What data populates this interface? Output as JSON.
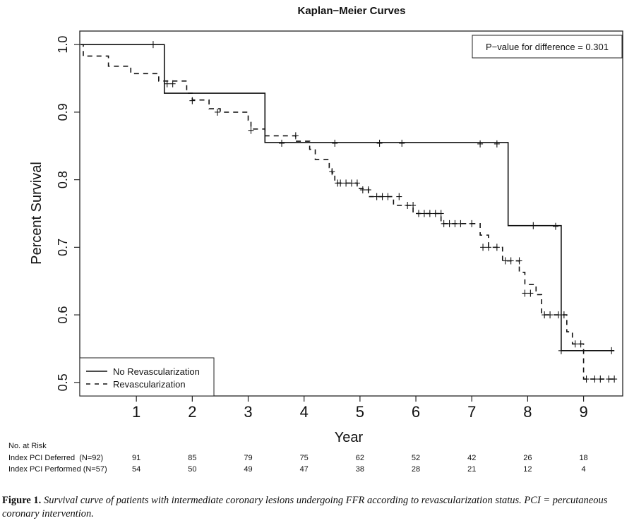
{
  "chart_data": {
    "type": "line",
    "title": "Kaplan−Meier Curves",
    "xlabel": "Year",
    "ylabel": "Percent Survival",
    "xlim": [
      0,
      9.7
    ],
    "ylim": [
      0.48,
      1.02
    ],
    "x_ticks": [
      "1",
      "2",
      "3",
      "4",
      "5",
      "6",
      "7",
      "8",
      "9"
    ],
    "y_ticks": [
      "0.5",
      "0.6",
      "0.7",
      "0.8",
      "0.9",
      "1.0"
    ],
    "annotation": "P−value for difference = 0.301",
    "legend_position": "bottom-left",
    "series": [
      {
        "name": "No Revascularization",
        "style": "solid",
        "color": "#111111",
        "steps": [
          [
            0,
            1.0
          ],
          [
            1.5,
            0.928
          ],
          [
            3.3,
            0.855
          ],
          [
            7.65,
            0.732
          ],
          [
            8.6,
            0.547
          ],
          [
            9.55,
            0.547
          ]
        ],
        "censored": [
          [
            1.3,
            1.0
          ],
          [
            3.6,
            0.854
          ],
          [
            4.55,
            0.854
          ],
          [
            5.35,
            0.854
          ],
          [
            5.75,
            0.854
          ],
          [
            7.15,
            0.853
          ],
          [
            7.45,
            0.853
          ],
          [
            8.1,
            0.732
          ],
          [
            8.5,
            0.731
          ],
          [
            9.5,
            0.547
          ],
          [
            8.6,
            0.547
          ]
        ]
      },
      {
        "name": "Revascularization",
        "style": "dashed",
        "color": "#111111",
        "steps": [
          [
            0,
            1.0
          ],
          [
            0.05,
            0.983
          ],
          [
            0.5,
            0.968
          ],
          [
            0.9,
            0.957
          ],
          [
            1.4,
            0.946
          ],
          [
            1.9,
            0.928
          ],
          [
            2.0,
            0.918
          ],
          [
            2.3,
            0.905
          ],
          [
            2.5,
            0.9
          ],
          [
            3.0,
            0.888
          ],
          [
            3.05,
            0.875
          ],
          [
            3.3,
            0.865
          ],
          [
            3.85,
            0.857
          ],
          [
            4.1,
            0.845
          ],
          [
            4.2,
            0.83
          ],
          [
            4.45,
            0.818
          ],
          [
            4.5,
            0.81
          ],
          [
            4.55,
            0.795
          ],
          [
            4.95,
            0.787
          ],
          [
            5.15,
            0.775
          ],
          [
            5.6,
            0.762
          ],
          [
            5.95,
            0.75
          ],
          [
            6.45,
            0.735
          ],
          [
            7.15,
            0.718
          ],
          [
            7.3,
            0.7
          ],
          [
            7.55,
            0.68
          ],
          [
            7.85,
            0.663
          ],
          [
            7.95,
            0.645
          ],
          [
            8.15,
            0.63
          ],
          [
            8.25,
            0.6
          ],
          [
            8.7,
            0.575
          ],
          [
            8.8,
            0.557
          ],
          [
            9.0,
            0.54
          ],
          [
            9.0,
            0.505
          ],
          [
            9.6,
            0.505
          ]
        ],
        "censored": [
          [
            1.55,
            0.942
          ],
          [
            1.65,
            0.942
          ],
          [
            2.0,
            0.917
          ],
          [
            2.45,
            0.9
          ],
          [
            3.05,
            0.873
          ],
          [
            3.85,
            0.865
          ],
          [
            4.5,
            0.812
          ],
          [
            4.6,
            0.795
          ],
          [
            4.65,
            0.795
          ],
          [
            4.75,
            0.795
          ],
          [
            4.85,
            0.795
          ],
          [
            4.95,
            0.795
          ],
          [
            5.05,
            0.785
          ],
          [
            5.15,
            0.785
          ],
          [
            5.3,
            0.775
          ],
          [
            5.4,
            0.775
          ],
          [
            5.5,
            0.775
          ],
          [
            5.7,
            0.775
          ],
          [
            5.85,
            0.762
          ],
          [
            5.95,
            0.762
          ],
          [
            6.05,
            0.75
          ],
          [
            6.15,
            0.75
          ],
          [
            6.25,
            0.75
          ],
          [
            6.35,
            0.75
          ],
          [
            6.45,
            0.75
          ],
          [
            6.5,
            0.735
          ],
          [
            6.6,
            0.735
          ],
          [
            6.7,
            0.735
          ],
          [
            6.8,
            0.735
          ],
          [
            7.0,
            0.735
          ],
          [
            7.2,
            0.7
          ],
          [
            7.3,
            0.7
          ],
          [
            7.45,
            0.7
          ],
          [
            7.6,
            0.68
          ],
          [
            7.7,
            0.68
          ],
          [
            7.85,
            0.68
          ],
          [
            7.95,
            0.632
          ],
          [
            8.05,
            0.632
          ],
          [
            8.3,
            0.6
          ],
          [
            8.4,
            0.6
          ],
          [
            8.55,
            0.6
          ],
          [
            8.65,
            0.6
          ],
          [
            8.85,
            0.557
          ],
          [
            8.95,
            0.557
          ],
          [
            9.05,
            0.505
          ],
          [
            9.2,
            0.505
          ],
          [
            9.3,
            0.505
          ],
          [
            9.45,
            0.505
          ],
          [
            9.55,
            0.505
          ]
        ]
      }
    ]
  },
  "risk_table": {
    "title": "No. at Risk",
    "rows": [
      {
        "label": "Index PCI Deferred  (N=92)",
        "values": [
          "91",
          "85",
          "79",
          "75",
          "62",
          "52",
          "42",
          "26",
          "18"
        ]
      },
      {
        "label": "Index PCI Performed (N=57)",
        "values": [
          "54",
          "50",
          "49",
          "47",
          "38",
          "28",
          "21",
          "12",
          "4"
        ]
      }
    ]
  },
  "caption": {
    "label": "Figure 1.",
    "text": "Survival curve of patients with intermediate coronary lesions undergoing FFR according to revascularization status. PCI = percutaneous coronary intervention."
  }
}
